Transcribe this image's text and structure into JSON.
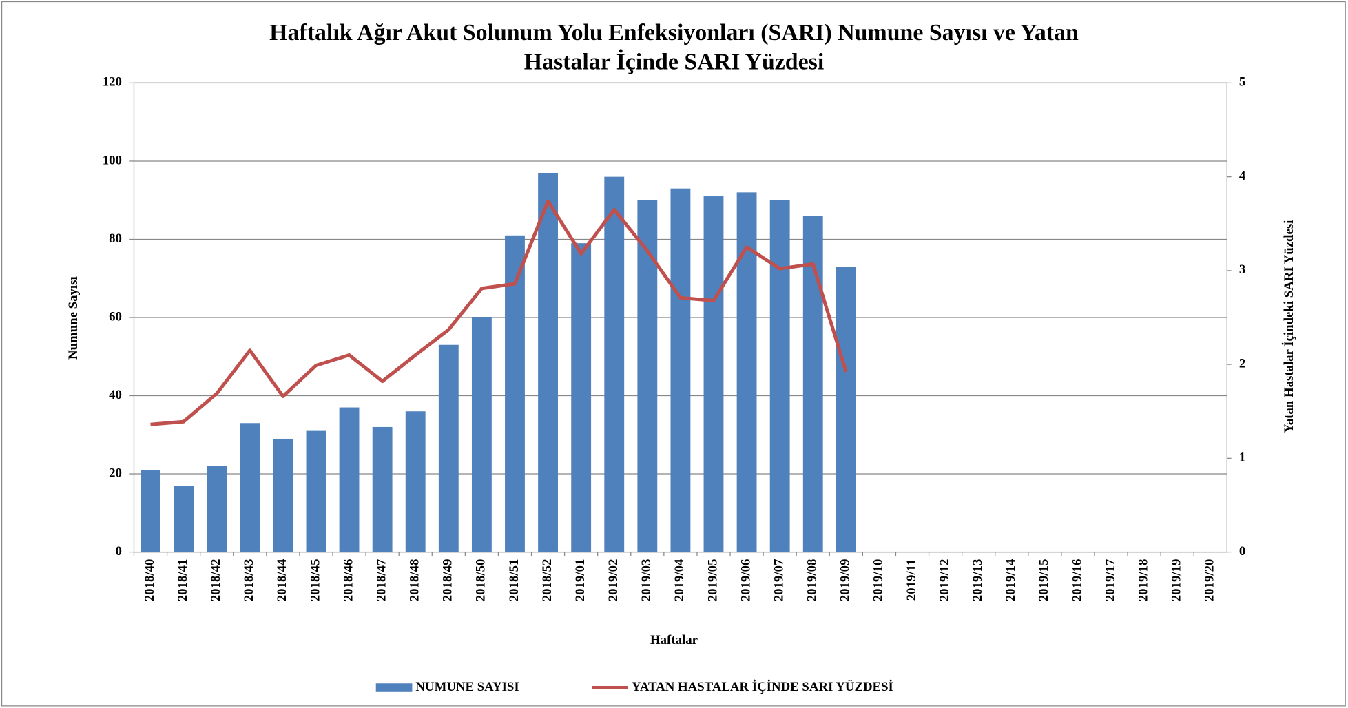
{
  "chart_data": {
    "type": "bar-line",
    "title": [
      "Haftalık Ağır Akut Solunum Yolu Enfeksiyonları (SARI) Numune Sayısı ve Yatan",
      "Hastalar İçinde SARI Yüzdesi"
    ],
    "x_label": "Haftalar",
    "y_label": "Numune  Sayısı",
    "y2_label": "Yatan Hastalar İçindeki SARI  Yüzdesi",
    "categories": [
      "2018/40",
      "2018/41",
      "2018/42",
      "2018/43",
      "2018/44",
      "2018/45",
      "2018/46",
      "2018/47",
      "2018/48",
      "2018/49",
      "2018/50",
      "2018/51",
      "2018/52",
      "2019/01",
      "2019/02",
      "2019/03",
      "2019/04",
      "2019/05",
      "2019/06",
      "2019/07",
      "2019/08",
      "2019/09",
      "2019/10",
      "2019/11",
      "2019/12",
      "2019/13",
      "2019/14",
      "2019/15",
      "2019/16",
      "2019/17",
      "2019/18",
      "2019/19",
      "2019/20"
    ],
    "series": [
      {
        "name": "NUMUNE SAYISI",
        "type": "bar",
        "color": "#4f81bd",
        "values": [
          21,
          17,
          22,
          33,
          29,
          31,
          37,
          32,
          36,
          53,
          60,
          81,
          97,
          79,
          96,
          90,
          93,
          91,
          92,
          90,
          86,
          73,
          null,
          null,
          null,
          null,
          null,
          null,
          null,
          null,
          null,
          null,
          null
        ]
      },
      {
        "name": "YATAN HASTALAR İÇİNDE SARI  YÜZDESİ",
        "type": "line",
        "axis": "y2",
        "color": "#c0504d",
        "values": [
          1.36,
          1.39,
          1.69,
          2.15,
          1.66,
          1.99,
          2.1,
          1.82,
          2.1,
          2.37,
          2.81,
          2.86,
          3.74,
          3.18,
          3.65,
          3.21,
          2.71,
          2.68,
          3.25,
          3.02,
          3.07,
          1.92,
          null,
          null,
          null,
          null,
          null,
          null,
          null,
          null,
          null,
          null,
          null
        ]
      }
    ],
    "ylim": [
      0,
      120
    ],
    "yticks": [
      0,
      20,
      40,
      60,
      80,
      100,
      120
    ],
    "y2lim": [
      0,
      5
    ],
    "y2ticks": [
      0,
      1,
      2,
      3,
      4,
      5
    ],
    "grid": true,
    "legend": "bottom"
  }
}
